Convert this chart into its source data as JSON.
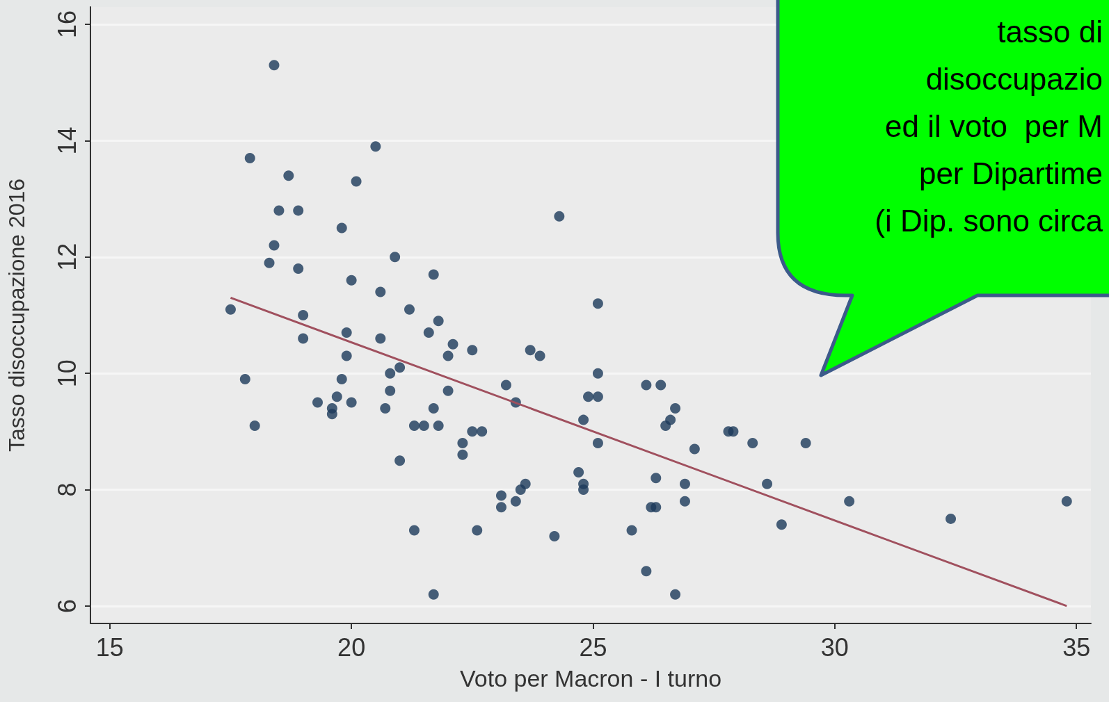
{
  "chart_data": {
    "type": "scatter",
    "xlabel": "Voto per Macron - I turno",
    "ylabel": "Tasso disoccupazione 2016",
    "annotations": [
      "tasso di\ndisoccupazio\ned il voto  per M\nper Dipartime\n(i Dip. sono circa"
    ],
    "xlim": [
      14.6,
      35.3
    ],
    "xticks": [
      15,
      20,
      25,
      30,
      35
    ],
    "ylim": [
      5.7,
      16.3
    ],
    "yticks": [
      6,
      8,
      10,
      12,
      14,
      16
    ],
    "grid": "y",
    "marker": "circle",
    "series": [
      {
        "color": "#1b3a5a",
        "x": [
          17.5,
          17.8,
          18.0,
          17.9,
          18.3,
          18.4,
          18.4,
          18.5,
          18.7,
          18.9,
          18.9,
          19.0,
          19.0,
          19.3,
          19.6,
          19.6,
          19.7,
          19.8,
          19.8,
          19.9,
          19.9,
          20.0,
          20.0,
          20.1,
          20.5,
          20.6,
          20.6,
          20.7,
          20.8,
          20.8,
          20.9,
          21.0,
          21.0,
          21.2,
          21.3,
          21.3,
          21.5,
          21.6,
          21.7,
          21.7,
          21.7,
          21.8,
          21.8,
          22.0,
          22.0,
          22.1,
          22.3,
          22.3,
          22.5,
          22.5,
          22.6,
          22.7,
          23.1,
          23.1,
          23.2,
          23.4,
          23.4,
          23.5,
          23.6,
          23.7,
          23.9,
          24.2,
          24.3,
          24.7,
          24.8,
          24.8,
          24.8,
          24.9,
          25.1,
          25.1,
          25.1,
          25.1,
          25.8,
          26.1,
          26.1,
          26.2,
          26.3,
          26.3,
          26.4,
          26.5,
          26.6,
          26.7,
          26.7,
          26.9,
          26.9,
          27.1,
          27.8,
          27.9,
          28.3,
          28.6,
          28.9,
          29.4,
          30.3,
          32.4,
          34.8
        ],
        "values": [
          11.1,
          9.9,
          9.1,
          13.7,
          11.9,
          15.3,
          12.2,
          12.8,
          13.4,
          11.8,
          12.8,
          11.0,
          10.6,
          9.5,
          9.4,
          9.3,
          9.6,
          9.9,
          12.5,
          10.7,
          10.3,
          9.5,
          11.6,
          13.3,
          13.9,
          11.4,
          10.6,
          9.4,
          10.0,
          9.7,
          12.0,
          8.5,
          10.1,
          11.1,
          9.1,
          7.3,
          9.1,
          10.7,
          9.4,
          11.7,
          6.2,
          9.1,
          10.9,
          9.7,
          10.3,
          10.5,
          8.6,
          8.8,
          10.4,
          9.0,
          7.3,
          9.0,
          7.9,
          7.7,
          9.8,
          7.8,
          9.5,
          8.0,
          8.1,
          10.4,
          10.3,
          7.2,
          12.7,
          8.3,
          9.2,
          8.1,
          8.0,
          9.6,
          9.6,
          11.2,
          10.0,
          8.8,
          7.3,
          6.6,
          9.8,
          7.7,
          7.7,
          8.2,
          9.8,
          9.1,
          9.2,
          9.4,
          6.2,
          8.1,
          7.8,
          8.7,
          9.0,
          9.0,
          8.8,
          8.1,
          7.4,
          8.8,
          7.8,
          7.5,
          7.8
        ]
      },
      {
        "type": "line",
        "color": "#a0505e",
        "marker": "none",
        "x": [
          17.5,
          34.8
        ],
        "values": [
          11.3,
          6.0
        ]
      }
    ]
  }
}
